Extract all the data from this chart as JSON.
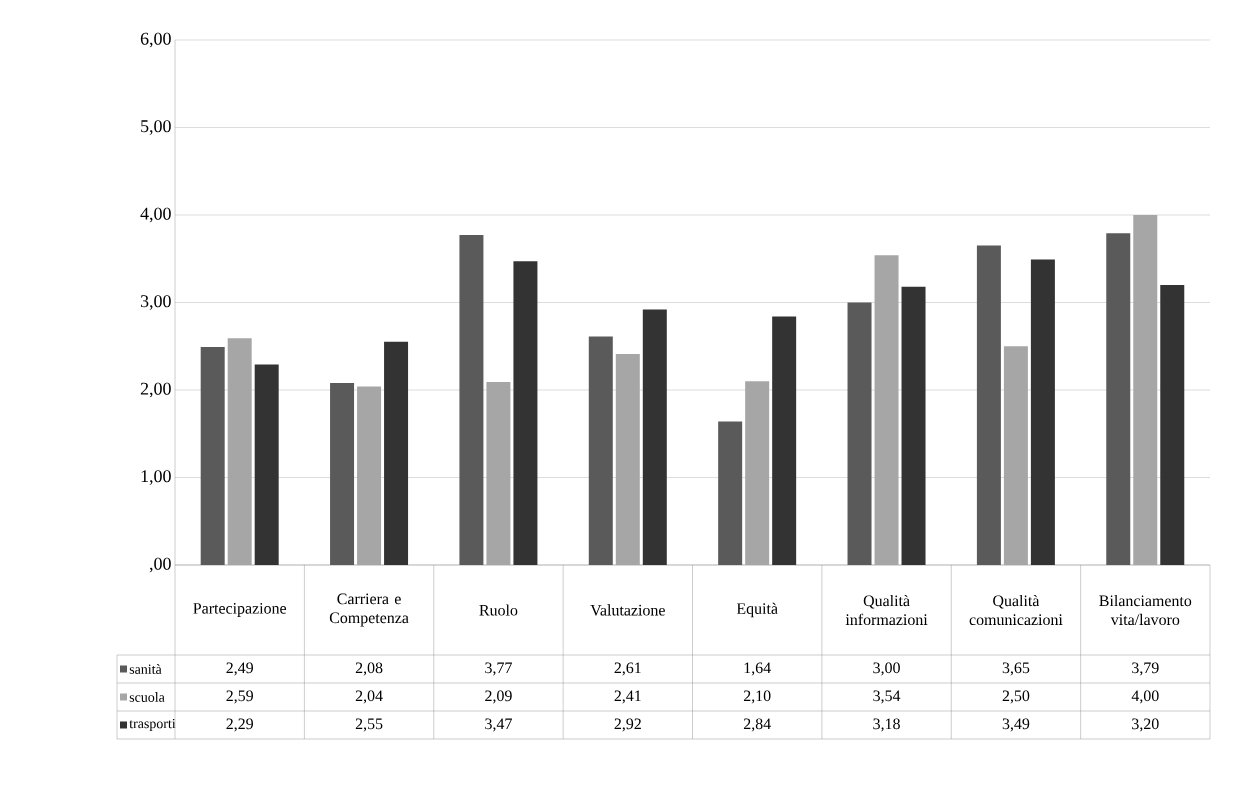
{
  "chart_data": {
    "type": "bar",
    "categories": [
      "Partecipazione",
      "Carriera e Competenza",
      "Ruolo",
      "Valutazione",
      "Equità",
      "Qualità informazioni",
      "Qualità comunicazioni",
      "Bilanciamento vita/lavoro"
    ],
    "series": [
      {
        "name": "sanità",
        "color": "#5a5a5a",
        "values": [
          2.49,
          2.08,
          3.77,
          2.61,
          1.64,
          3.0,
          3.65,
          3.79
        ],
        "value_labels": [
          "2,49",
          "2,08",
          "3,77",
          "2,61",
          "1,64",
          "3,00",
          "3,65",
          "3,79"
        ]
      },
      {
        "name": "scuola",
        "color": "#a6a6a6",
        "values": [
          2.59,
          2.04,
          2.09,
          2.41,
          2.1,
          3.54,
          2.5,
          4.0
        ],
        "value_labels": [
          "2,59",
          "2,04",
          "2,09",
          "2,41",
          "2,10",
          "3,54",
          "2,50",
          "4,00"
        ]
      },
      {
        "name": "trasporti",
        "color": "#333333",
        "values": [
          2.29,
          2.55,
          3.47,
          2.92,
          2.84,
          3.18,
          3.49,
          3.2
        ],
        "value_labels": [
          "2,29",
          "2,55",
          "3,47",
          "2,92",
          "2,84",
          "3,18",
          "3,49",
          "3,20"
        ]
      }
    ],
    "ylim": [
      0,
      6
    ],
    "yticks": [
      {
        "value": 0,
        "label": ",00"
      },
      {
        "value": 1,
        "label": "1,00"
      },
      {
        "value": 2,
        "label": "2,00"
      },
      {
        "value": 3,
        "label": "3,00"
      },
      {
        "value": 4,
        "label": "4,00"
      },
      {
        "value": 5,
        "label": "5,00"
      },
      {
        "value": 6,
        "label": "6,00"
      }
    ],
    "grid": "y",
    "legend": "bottom left"
  }
}
